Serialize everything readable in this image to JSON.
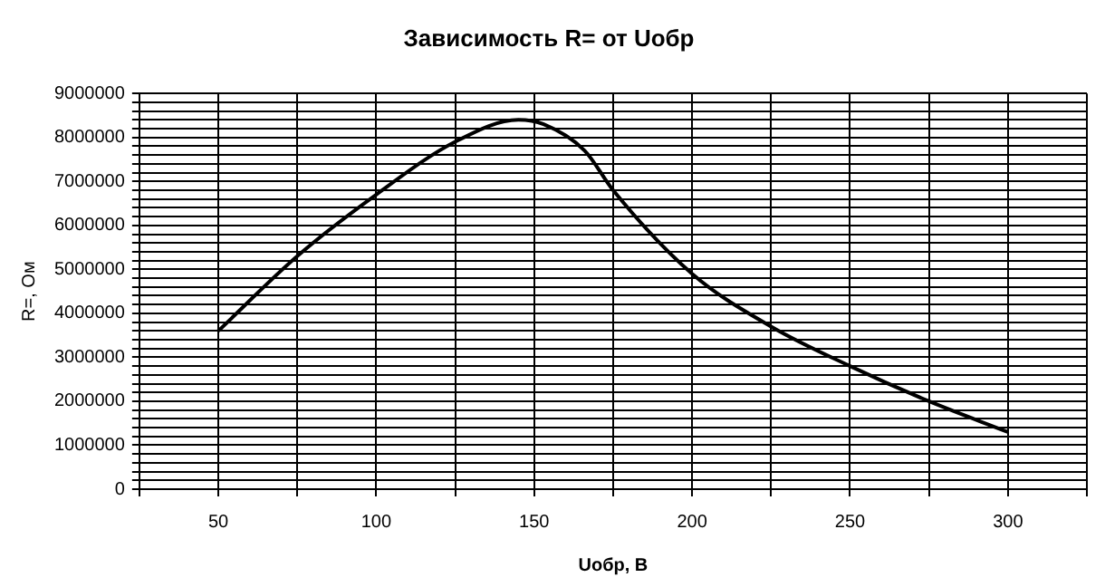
{
  "chart_data": {
    "type": "line",
    "title": "Зависимость R= от Uобр",
    "xlabel": "Uобр, В",
    "ylabel": "R=, Ом",
    "x": [
      50,
      75,
      100,
      125,
      145,
      153,
      166,
      175,
      200,
      225,
      250,
      275,
      300
    ],
    "series": [
      {
        "color": "#000000",
        "values": [
          3600000,
          5300000,
          6700000,
          7900000,
          8400000,
          8300000,
          7700000,
          6800000,
          4900000,
          3700000,
          2800000,
          2000000,
          1300000
        ]
      }
    ],
    "xlim": [
      25,
      325
    ],
    "xticks": [
      {
        "value": 25,
        "label": null
      },
      50,
      {
        "value": 75,
        "label": null
      },
      100,
      {
        "value": 125,
        "label": null
      },
      150,
      {
        "value": 175,
        "label": null
      },
      200,
      {
        "value": 225,
        "label": null
      },
      250,
      {
        "value": 275,
        "label": null
      },
      300,
      {
        "value": 325,
        "label": null
      }
    ],
    "ylim": [
      0,
      9000000
    ],
    "yticks": [
      0,
      {
        "value": 200000,
        "label": null
      },
      {
        "value": 400000,
        "label": null
      },
      {
        "value": 600000,
        "label": null
      },
      {
        "value": 800000,
        "label": null
      },
      1000000,
      {
        "value": 1200000,
        "label": null
      },
      {
        "value": 1400000,
        "label": null
      },
      {
        "value": 1600000,
        "label": null
      },
      {
        "value": 1800000,
        "label": null
      },
      2000000,
      {
        "value": 2200000,
        "label": null
      },
      {
        "value": 2400000,
        "label": null
      },
      {
        "value": 2600000,
        "label": null
      },
      {
        "value": 2800000,
        "label": null
      },
      3000000,
      {
        "value": 3200000,
        "label": null
      },
      {
        "value": 3400000,
        "label": null
      },
      {
        "value": 3600000,
        "label": null
      },
      {
        "value": 3800000,
        "label": null
      },
      4000000,
      {
        "value": 4200000,
        "label": null
      },
      {
        "value": 4400000,
        "label": null
      },
      {
        "value": 4600000,
        "label": null
      },
      {
        "value": 4800000,
        "label": null
      },
      5000000,
      {
        "value": 5200000,
        "label": null
      },
      {
        "value": 5400000,
        "label": null
      },
      {
        "value": 5600000,
        "label": null
      },
      {
        "value": 5800000,
        "label": null
      },
      6000000,
      {
        "value": 6200000,
        "label": null
      },
      {
        "value": 6400000,
        "label": null
      },
      {
        "value": 6600000,
        "label": null
      },
      {
        "value": 6800000,
        "label": null
      },
      7000000,
      {
        "value": 7200000,
        "label": null
      },
      {
        "value": 7400000,
        "label": null
      },
      {
        "value": 7600000,
        "label": null
      },
      {
        "value": 7800000,
        "label": null
      },
      8000000,
      {
        "value": 8200000,
        "label": null
      },
      {
        "value": 8400000,
        "label": null
      },
      {
        "value": 8600000,
        "label": null
      },
      {
        "value": 8800000,
        "label": null
      },
      9000000
    ],
    "grid": true,
    "marker": "none",
    "line_style": "solid"
  }
}
